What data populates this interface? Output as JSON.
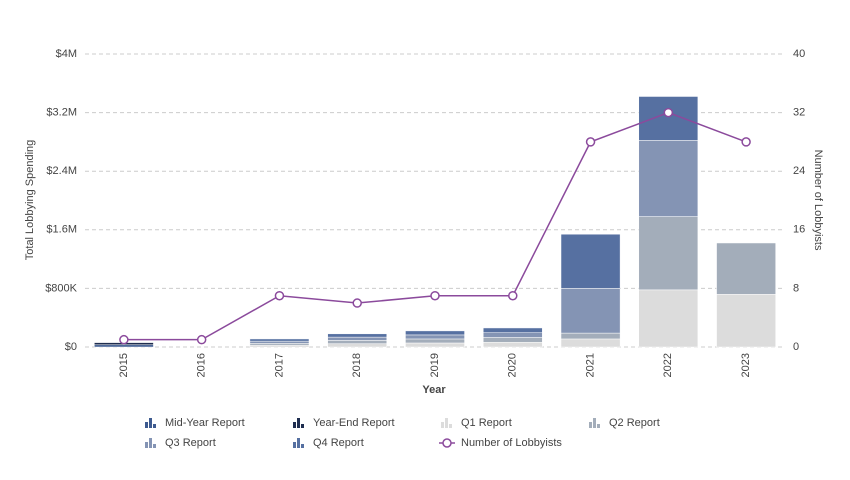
{
  "chart_data": {
    "type": "bar",
    "x_label": "Year",
    "y_label": "Total Lobbying Spending",
    "y2_label": "Number of Lobbyists",
    "categories": [
      "2015",
      "2016",
      "2017",
      "2018",
      "2019",
      "2020",
      "2021",
      "2022",
      "2023"
    ],
    "series": [
      {
        "name": "Mid-Year Report",
        "color": "#3d5a8f",
        "values": [
          30000,
          null,
          null,
          null,
          null,
          null,
          null,
          null,
          null
        ]
      },
      {
        "name": "Year-End Report",
        "color": "#1e2d4f",
        "values": [
          30000,
          null,
          null,
          null,
          null,
          null,
          null,
          null,
          null
        ]
      },
      {
        "name": "Q1 Report",
        "color": "#dcdcdc",
        "values": [
          null,
          null,
          25000,
          45000,
          55000,
          65000,
          110000,
          780000,
          720000
        ]
      },
      {
        "name": "Q2 Report",
        "color": "#a3adba",
        "values": [
          null,
          null,
          25000,
          45000,
          55000,
          65000,
          80000,
          1000000,
          700000
        ]
      },
      {
        "name": "Q3 Report",
        "color": "#8494b4",
        "values": [
          null,
          null,
          30000,
          45000,
          55000,
          65000,
          610000,
          1040000,
          null
        ]
      },
      {
        "name": "Q4 Report",
        "color": "#5670a1",
        "values": [
          null,
          null,
          30000,
          45000,
          55000,
          65000,
          740000,
          600000,
          null
        ]
      },
      {
        "name": "Number of Lobbyists",
        "color": "#8b4a9c",
        "axis": "y2",
        "type": "line",
        "values": [
          1,
          1,
          7,
          6,
          7,
          7,
          28,
          32,
          28
        ]
      }
    ],
    "ylim": [
      0,
      4000000
    ],
    "yticks": [
      {
        "value": 0,
        "label": "$0"
      },
      {
        "value": 800000,
        "label": "$800K"
      },
      {
        "value": 1600000,
        "label": "$1.6M"
      },
      {
        "value": 2400000,
        "label": "$2.4M"
      },
      {
        "value": 3200000,
        "label": "$3.2M"
      },
      {
        "value": 4000000,
        "label": "$4M"
      }
    ],
    "y2lim": [
      0,
      40
    ],
    "y2ticks": [
      0,
      8,
      16,
      24,
      32,
      40
    ],
    "grid": true
  }
}
